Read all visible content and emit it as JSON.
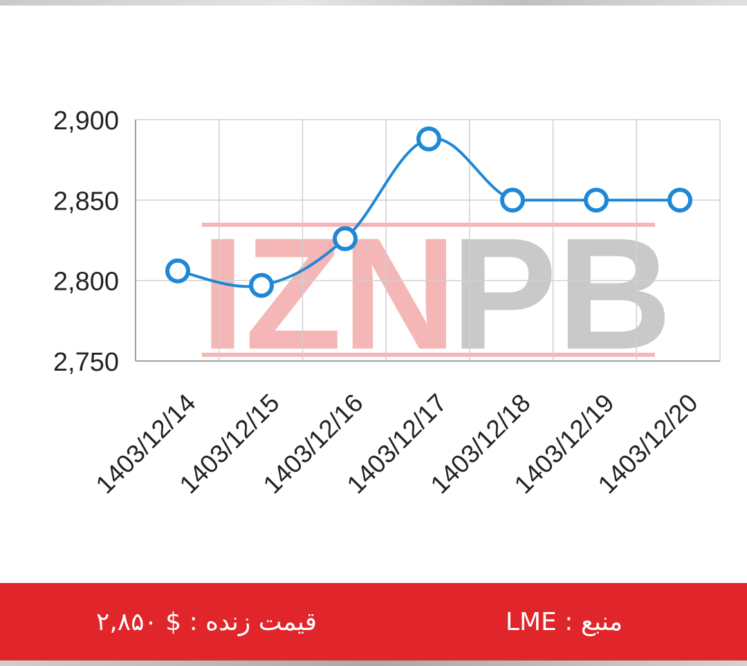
{
  "chart_data": {
    "type": "line",
    "categories": [
      "1403/12/14",
      "1403/12/15",
      "1403/12/16",
      "1403/12/17",
      "1403/12/18",
      "1403/12/19",
      "1403/12/20"
    ],
    "values": [
      2806,
      2797,
      2826,
      2888,
      2850,
      2850,
      2850
    ],
    "yticks": [
      2750,
      2800,
      2850,
      2900
    ],
    "ytick_labels": [
      "2,750",
      "2,800",
      "2,850",
      "2,900"
    ],
    "ylim": [
      2750,
      2900
    ],
    "grid": true,
    "smooth": true,
    "line_color": "#1e88d6",
    "marker_fill": "#ffffff",
    "title": "",
    "xlabel": "",
    "ylabel": ""
  },
  "watermark": {
    "text": "IZNPB",
    "letters_red": "IZN",
    "letters_gray": "PB",
    "red_color": "#f4b6b6",
    "gray_color": "#c9c9c9"
  },
  "footer": {
    "background": "#e0252b",
    "price_label": "قیمت زنده :",
    "price_value": "۲,۸۵۰ $",
    "source_label": "منبع :",
    "source_value": "LME"
  }
}
